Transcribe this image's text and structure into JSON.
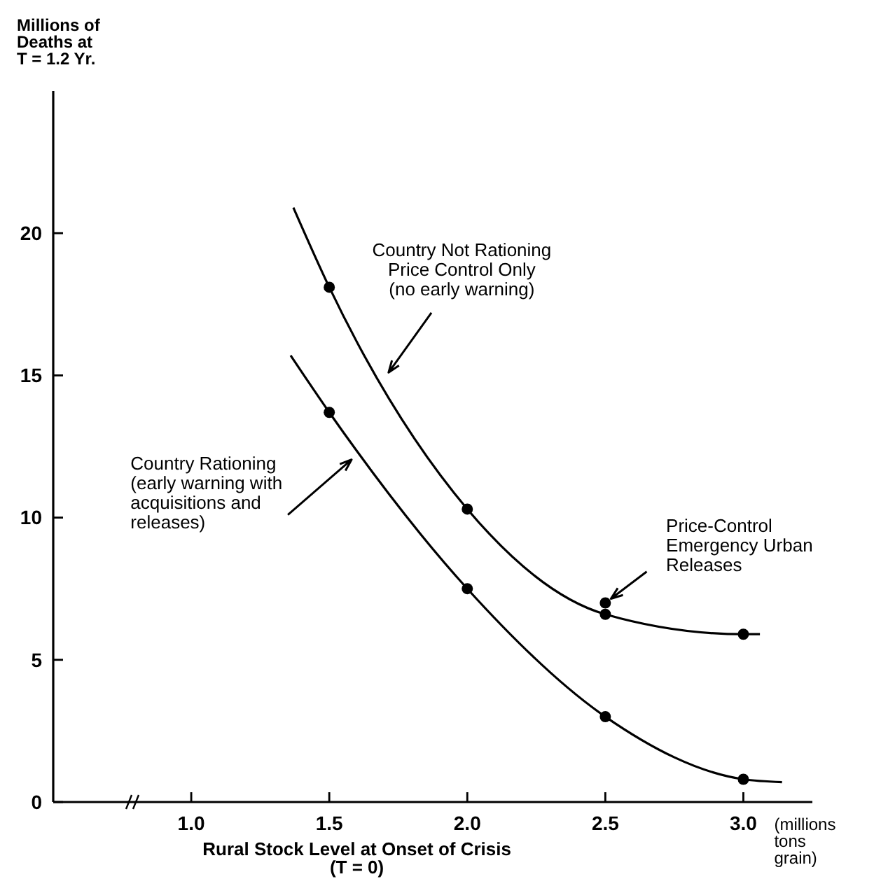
{
  "chart_data": {
    "type": "line",
    "xlabel": "Rural Stock Level at Onset of Crisis\n(T = 0)",
    "ylabel": "Millions of\nDeaths at\nT = 1.2 Yr.",
    "xlim": [
      0.5,
      3.25
    ],
    "ylim": [
      0,
      25
    ],
    "xticks": [
      {
        "value": 1,
        "label": "1.0"
      },
      {
        "value": 1.5,
        "label": "1.5"
      },
      {
        "value": 2,
        "label": "2.0"
      },
      {
        "value": 2.5,
        "label": "2.5"
      },
      {
        "value": 3,
        "label": "3.0"
      }
    ],
    "yticks": [
      0,
      5,
      10,
      15,
      20
    ],
    "grid": false,
    "line_style": "solid",
    "series": [
      {
        "type": "line",
        "color": "#000000",
        "marker": "none",
        "x": [
          1.37,
          1.5,
          2.0,
          2.5,
          3.0,
          3.06
        ],
        "values": [
          20.9,
          18.1,
          10.3,
          6.6,
          5.9,
          5.9
        ]
      },
      {
        "type": "line",
        "color": "#000000",
        "marker": "none",
        "x": [
          1.36,
          1.5,
          2.0,
          2.5,
          3.0,
          3.14
        ],
        "values": [
          15.7,
          13.7,
          7.5,
          3.0,
          0.8,
          0.7
        ]
      },
      {
        "type": "scatter",
        "color": "#000000",
        "marker": "circle",
        "x": [
          1.5,
          2.0,
          2.5,
          2.5,
          3.0
        ],
        "values": [
          18.1,
          10.3,
          6.6,
          7.0,
          5.9
        ]
      },
      {
        "type": "scatter",
        "color": "#000000",
        "marker": "circle",
        "x": [
          1.5,
          2.0,
          2.5,
          3.0
        ],
        "values": [
          13.7,
          7.5,
          3.0,
          0.8
        ]
      }
    ],
    "annotations": [
      {
        "text": "Country Not Rationing\nPrice Control Only\n(no early warning)",
        "x": 1.7,
        "y": 14.9
      },
      {
        "text": "Country Rationing\n(early warning with\nacquisitions and\nreleases)",
        "x": 1.6,
        "y": 12.2
      },
      {
        "text": "Price-Control\nEmergency Urban\nReleases",
        "x": 2.5,
        "y": 7.0
      },
      "(millions\ntons\ngrain)"
    ]
  }
}
